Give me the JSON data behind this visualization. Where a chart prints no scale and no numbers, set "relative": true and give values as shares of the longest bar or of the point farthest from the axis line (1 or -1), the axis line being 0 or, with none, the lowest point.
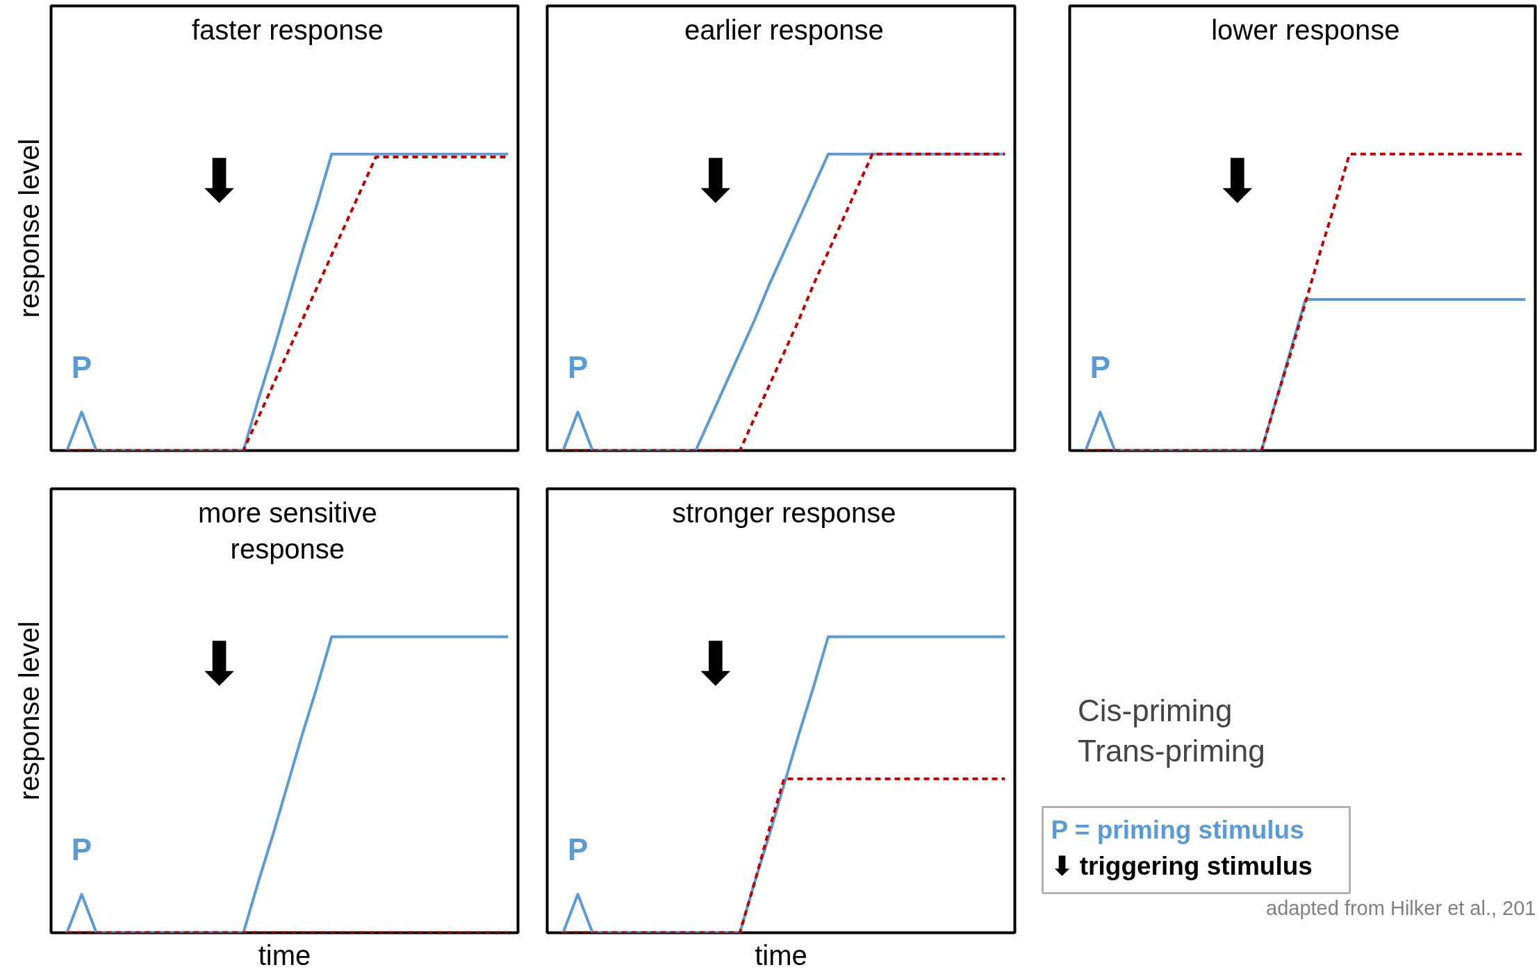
{
  "chart_data": [
    {
      "type": "line",
      "title": "faster response",
      "ylabel": "response level",
      "relative": true,
      "categories": [
        null,
        null,
        null,
        null,
        null,
        null,
        null,
        null,
        null,
        null,
        null,
        null,
        null,
        null,
        null,
        null,
        null,
        null,
        null,
        null,
        null,
        null,
        null,
        null,
        null,
        null,
        null,
        null,
        null,
        null,
        null
      ],
      "series": [
        {
          "color": "#5b9bd5",
          "line_style": "solid",
          "values": [
            0,
            0.13,
            0,
            0,
            0,
            0,
            0,
            0,
            0,
            0,
            0,
            0,
            0,
            0.17,
            0.33,
            0.5,
            0.67,
            0.83,
            1,
            1,
            1,
            1,
            1,
            1,
            1,
            1,
            1,
            1,
            1,
            1,
            1
          ]
        },
        {
          "color": "#c00000",
          "line_style": "dashed",
          "values": [
            0,
            0,
            0,
            0,
            0,
            0,
            0,
            0,
            0,
            0,
            0,
            0,
            0,
            0.11,
            0.22,
            0.33,
            0.44,
            0.55,
            0.66,
            0.77,
            0.88,
            0.99,
            0.99,
            0.99,
            0.99,
            0.99,
            0.99,
            0.99,
            0.99,
            0.99,
            0.99
          ]
        }
      ],
      "annotations": [
        "P",
        "⬇"
      ]
    },
    {
      "type": "line",
      "title": "earlier response",
      "relative": true,
      "categories": [
        null,
        null,
        null,
        null,
        null,
        null,
        null,
        null,
        null,
        null,
        null,
        null,
        null,
        null,
        null,
        null,
        null,
        null,
        null,
        null,
        null,
        null,
        null,
        null,
        null,
        null,
        null,
        null,
        null,
        null,
        null
      ],
      "series": [
        {
          "color": "#5b9bd5",
          "line_style": "solid",
          "values": [
            0,
            0.13,
            0,
            0,
            0,
            0,
            0,
            0,
            0,
            0,
            0.11,
            0.22,
            0.33,
            0.44,
            0.56,
            0.67,
            0.78,
            0.89,
            1,
            1,
            1,
            1,
            1,
            1,
            1,
            1,
            1,
            1,
            1,
            1,
            1
          ]
        },
        {
          "color": "#c00000",
          "line_style": "dashed",
          "values": [
            0,
            0,
            0,
            0,
            0,
            0,
            0,
            0,
            0,
            0,
            0,
            0,
            0,
            0.11,
            0.22,
            0.33,
            0.44,
            0.56,
            0.67,
            0.78,
            0.89,
            1,
            1,
            1,
            1,
            1,
            1,
            1,
            1,
            1,
            1
          ]
        }
      ],
      "annotations": [
        "P",
        "⬇"
      ]
    },
    {
      "type": "line",
      "title": "lower response",
      "relative": true,
      "categories": [
        null,
        null,
        null,
        null,
        null,
        null,
        null,
        null,
        null,
        null,
        null,
        null,
        null,
        null,
        null,
        null,
        null,
        null,
        null,
        null,
        null,
        null,
        null,
        null,
        null,
        null,
        null,
        null,
        null,
        null,
        null
      ],
      "series": [
        {
          "color": "#5b9bd5",
          "line_style": "solid",
          "values": [
            0,
            0.13,
            0,
            0,
            0,
            0,
            0,
            0,
            0,
            0,
            0,
            0,
            0,
            0.17,
            0.34,
            0.51,
            0.51,
            0.51,
            0.51,
            0.51,
            0.51,
            0.51,
            0.51,
            0.51,
            0.51,
            0.51,
            0.51,
            0.51,
            0.51,
            0.51,
            0.51
          ]
        },
        {
          "color": "#c00000",
          "line_style": "dashed",
          "values": [
            0,
            0,
            0,
            0,
            0,
            0,
            0,
            0,
            0,
            0,
            0,
            0,
            0,
            0.17,
            0.33,
            0.5,
            0.67,
            0.83,
            1,
            1,
            1,
            1,
            1,
            1,
            1,
            1,
            1,
            1,
            1,
            1,
            1
          ]
        }
      ],
      "annotations": [
        "P",
        "⬇"
      ]
    },
    {
      "type": "line",
      "title": "more sensitive\nresponse",
      "ylabel": "response level",
      "xlabel": "time",
      "relative": true,
      "categories": [
        null,
        null,
        null,
        null,
        null,
        null,
        null,
        null,
        null,
        null,
        null,
        null,
        null,
        null,
        null,
        null,
        null,
        null,
        null,
        null,
        null,
        null,
        null,
        null,
        null,
        null,
        null,
        null,
        null,
        null,
        null
      ],
      "series": [
        {
          "color": "#5b9bd5",
          "line_style": "solid",
          "values": [
            0,
            0.13,
            0,
            0,
            0,
            0,
            0,
            0,
            0,
            0,
            0,
            0,
            0,
            0.17,
            0.33,
            0.5,
            0.67,
            0.83,
            1,
            1,
            1,
            1,
            1,
            1,
            1,
            1,
            1,
            1,
            1,
            1,
            1
          ]
        },
        {
          "color": "#c00000",
          "line_style": "dashed",
          "values": [
            0,
            0,
            0,
            0,
            0,
            0,
            0,
            0,
            0,
            0,
            0,
            0,
            0,
            0,
            0,
            0,
            0,
            0,
            0,
            0,
            0,
            0,
            0,
            0,
            0,
            0,
            0,
            0,
            0,
            0,
            0
          ]
        }
      ],
      "annotations": [
        "P",
        "⬇"
      ]
    },
    {
      "type": "line",
      "title": "stronger response",
      "xlabel": "time",
      "relative": true,
      "legend": "right",
      "categories": [
        null,
        null,
        null,
        null,
        null,
        null,
        null,
        null,
        null,
        null,
        null,
        null,
        null,
        null,
        null,
        null,
        null,
        null,
        null,
        null,
        null,
        null,
        null,
        null,
        null,
        null,
        null,
        null,
        null,
        null,
        null
      ],
      "series": [
        {
          "name": "Cis-priming",
          "color": "#5b9bd5",
          "line_style": "solid",
          "values": [
            0,
            0.13,
            0,
            0,
            0,
            0,
            0,
            0,
            0,
            0,
            0,
            0,
            0,
            0.17,
            0.33,
            0.5,
            0.67,
            0.83,
            1,
            1,
            1,
            1,
            1,
            1,
            1,
            1,
            1,
            1,
            1,
            1,
            1
          ]
        },
        {
          "name": "Trans-priming",
          "color": "#c00000",
          "line_style": "dashed",
          "values": [
            0,
            0,
            0,
            0,
            0,
            0,
            0,
            0,
            0,
            0,
            0,
            0,
            0,
            0.17,
            0.35,
            0.52,
            0.52,
            0.52,
            0.52,
            0.52,
            0.52,
            0.52,
            0.52,
            0.52,
            0.52,
            0.52,
            0.52,
            0.52,
            0.52,
            0.52,
            0.52
          ]
        }
      ],
      "annotations": [
        "P",
        "⬇",
        "P = priming stimulus",
        "⬇ triggering stimulus",
        "adapted from Hilker et al., 201"
      ]
    }
  ]
}
